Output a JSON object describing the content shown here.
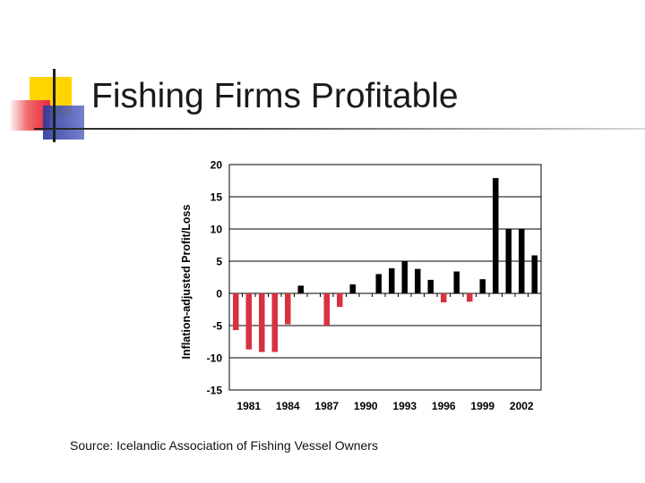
{
  "slide": {
    "title": "Fishing Firms Profitable",
    "source": "Source: Icelandic Association of Fishing Vessel Owners"
  },
  "colors": {
    "positive_bar": "#000000",
    "negative_bar": "#d6323f",
    "gridline": "#000000",
    "title_accent_yellow": "#ffd400",
    "title_accent_red": "#e8283a",
    "title_accent_blue": "#2c3a9f"
  },
  "chart_data": {
    "type": "bar",
    "title": "",
    "xlabel": "",
    "ylabel": "Inflation-adjusted Profit/Loss",
    "ylim": [
      -15,
      20
    ],
    "yticks": [
      20,
      15,
      10,
      5,
      0,
      -5,
      -10,
      -15
    ],
    "grid": true,
    "legend": "none",
    "xtick_labels": [
      "1981",
      "1984",
      "1987",
      "1990",
      "1993",
      "1996",
      "1999",
      "2002"
    ],
    "categories": [
      "1980",
      "1981",
      "1982",
      "1983",
      "1984",
      "1985",
      "1986",
      "1987",
      "1988",
      "1989",
      "1990",
      "1991",
      "1992",
      "1993",
      "1994",
      "1995",
      "1996",
      "1997",
      "1998",
      "1999",
      "2000",
      "2001",
      "2002",
      "2003"
    ],
    "values": [
      -5.7,
      -8.7,
      -9.1,
      -9.1,
      -4.8,
      1.2,
      0,
      -5.0,
      -2.1,
      1.4,
      0,
      3.0,
      3.9,
      5.0,
      3.8,
      2.1,
      -1.4,
      3.4,
      -1.3,
      2.2,
      17.9,
      10.0,
      10.0,
      5.9
    ]
  }
}
